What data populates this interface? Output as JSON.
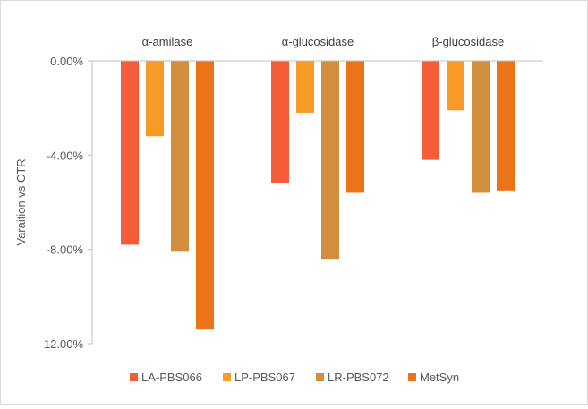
{
  "chart_data": {
    "type": "bar",
    "categories": [
      "α-amilase",
      "α-glucosidase",
      "β-glucosidase"
    ],
    "series": [
      {
        "name": "LA-PBS066",
        "color": "#F55D39",
        "values": [
          -0.078,
          -0.052,
          -0.042
        ]
      },
      {
        "name": "LP-PBS067",
        "color": "#F79A26",
        "values": [
          -0.032,
          -0.022,
          -0.021
        ]
      },
      {
        "name": "LR-PBS072",
        "color": "#D18F3D",
        "values": [
          -0.081,
          -0.084,
          -0.056
        ]
      },
      {
        "name": "MetSyn",
        "color": "#EB7318",
        "values": [
          -0.114,
          -0.056,
          -0.055
        ]
      }
    ],
    "ylabel": "Varaition vs CTR",
    "ylim": [
      -0.12,
      0
    ],
    "yticks": [
      0,
      -0.04,
      -0.08,
      -0.12
    ],
    "ytick_labels": [
      "0.00%",
      "-4.00%",
      "-8.00%",
      "-12.00%"
    ],
    "legend_position": "bottom",
    "category_labels_position": "top",
    "grid": false
  }
}
